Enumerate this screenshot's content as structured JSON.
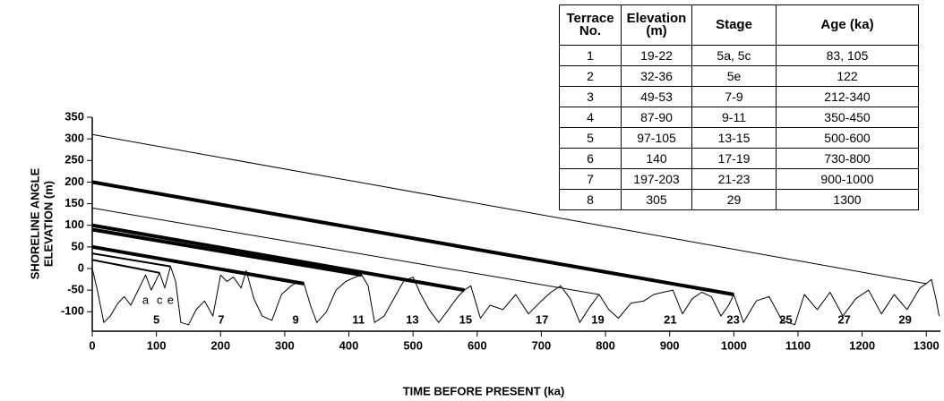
{
  "chart_data": {
    "type": "line",
    "xlabel": "TIME BEFORE PRESENT (ka)",
    "ylabel": [
      "SHORELINE ANGLE",
      "ELEVATION (m)"
    ],
    "xlim": [
      0,
      1322
    ],
    "ylim": [
      -145,
      350
    ],
    "xticks": [
      0,
      100,
      200,
      300,
      400,
      500,
      600,
      700,
      800,
      900,
      1000,
      1100,
      1200,
      1300
    ],
    "yticks": [
      350,
      300,
      250,
      200,
      150,
      100,
      50,
      0,
      -50,
      -100
    ],
    "series": [
      {
        "color": "#000",
        "width": 1,
        "x": [
          0,
          8,
          18,
          28,
          40,
          50,
          60,
          70,
          83,
          92,
          105,
          113,
          122,
          130,
          138,
          150,
          162,
          175,
          188,
          200,
          210,
          220,
          232,
          240,
          252,
          265,
          280,
          295,
          310,
          322,
          330,
          340,
          350,
          365,
          380,
          395,
          410,
          420,
          430,
          440,
          455,
          470,
          485,
          500,
          512,
          525,
          540,
          555,
          570,
          580,
          590,
          605,
          620,
          640,
          660,
          680,
          700,
          715,
          730,
          745,
          760,
          775,
          790,
          805,
          820,
          840,
          860,
          875,
          890,
          905,
          920,
          935,
          950,
          965,
          980,
          992,
          1000,
          1015,
          1035,
          1055,
          1075,
          1095,
          1110,
          1130,
          1150,
          1170,
          1190,
          1210,
          1230,
          1250,
          1270,
          1290,
          1300,
          1308,
          1315,
          1320
        ],
        "values": [
          0,
          -50,
          -125,
          -110,
          -80,
          -65,
          -85,
          -55,
          -15,
          -50,
          -10,
          -45,
          5,
          -30,
          -125,
          -130,
          -95,
          -75,
          -110,
          -15,
          -30,
          -20,
          -45,
          -5,
          -70,
          -110,
          -120,
          -60,
          -40,
          -30,
          -35,
          -85,
          -125,
          -100,
          -50,
          -30,
          -20,
          -15,
          -40,
          -125,
          -110,
          -70,
          -30,
          -20,
          -60,
          -95,
          -125,
          -95,
          -65,
          -50,
          -40,
          -115,
          -85,
          -95,
          -60,
          -105,
          -75,
          -55,
          -40,
          -70,
          -125,
          -90,
          -60,
          -95,
          -115,
          -80,
          -75,
          -60,
          -55,
          -50,
          -105,
          -70,
          -55,
          -65,
          -110,
          -85,
          -60,
          -125,
          -75,
          -65,
          -120,
          -130,
          -60,
          -95,
          -55,
          -110,
          -70,
          -50,
          -105,
          -60,
          -95,
          -45,
          -35,
          -25,
          -70,
          -110
        ]
      },
      {
        "color": "#000",
        "width": 1,
        "x": [
          0,
          1300
        ],
        "values": [
          310,
          -35
        ]
      },
      {
        "color": "#000",
        "width": 4,
        "x": [
          0,
          1000
        ],
        "values": [
          200,
          -60
        ]
      },
      {
        "color": "#000",
        "width": 1,
        "x": [
          0,
          790
        ],
        "values": [
          140,
          -60
        ]
      },
      {
        "color": "#000",
        "width": 4,
        "x": [
          0,
          580
        ],
        "values": [
          100,
          -50
        ]
      },
      {
        "color": "#000",
        "width": 4,
        "x": [
          0,
          420
        ],
        "values": [
          90,
          -15
        ]
      },
      {
        "color": "#000",
        "width": 4,
        "x": [
          0,
          330
        ],
        "values": [
          50,
          -35
        ]
      },
      {
        "color": "#000",
        "width": 2,
        "x": [
          0,
          122
        ],
        "values": [
          35,
          5
        ]
      },
      {
        "color": "#000",
        "width": 2,
        "x": [
          0,
          105
        ],
        "values": [
          20,
          -10
        ]
      }
    ],
    "stage_labels": [
      {
        "text": "5",
        "x": 100
      },
      {
        "text": "7",
        "x": 201
      },
      {
        "text": "9",
        "x": 317
      },
      {
        "text": "11",
        "x": 415
      },
      {
        "text": "13",
        "x": 499
      },
      {
        "text": "15",
        "x": 582
      },
      {
        "text": "17",
        "x": 701
      },
      {
        "text": "19",
        "x": 788
      },
      {
        "text": "21",
        "x": 901
      },
      {
        "text": "23",
        "x": 999
      },
      {
        "text": "25",
        "x": 1081
      },
      {
        "text": "27",
        "x": 1172
      },
      {
        "text": "29",
        "x": 1267
      }
    ],
    "substage_labels": [
      {
        "text": "a",
        "x": 83
      },
      {
        "text": "c",
        "x": 105
      },
      {
        "text": "e",
        "x": 122
      }
    ]
  },
  "table": {
    "header": [
      "Terrace No.",
      "Elevation (m)",
      "Stage",
      "Age (ka)"
    ],
    "rows": [
      [
        "1",
        "19-22",
        "5a, 5c",
        "83, 105"
      ],
      [
        "2",
        "32-36",
        "5e",
        "122"
      ],
      [
        "3",
        "49-53",
        "7-9",
        "212-340"
      ],
      [
        "4",
        "87-90",
        "9-11",
        "350-450"
      ],
      [
        "5",
        "97-105",
        "13-15",
        "500-600"
      ],
      [
        "6",
        "140",
        "17-19",
        "730-800"
      ],
      [
        "7",
        "197-203",
        "21-23",
        "900-1000"
      ],
      [
        "8",
        "305",
        "29",
        "1300"
      ]
    ]
  }
}
